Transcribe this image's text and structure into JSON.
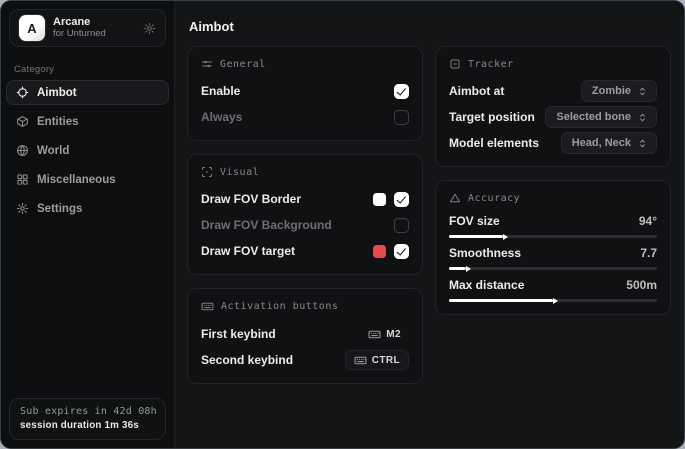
{
  "sidebar": {
    "brand": {
      "logo_letter": "A",
      "name": "Arcane",
      "subtitle": "for Unturned"
    },
    "category_label": "Category",
    "items": [
      {
        "label": "Aimbot",
        "active": true
      },
      {
        "label": "Entities",
        "active": false
      },
      {
        "label": "World",
        "active": false
      },
      {
        "label": "Miscellaneous",
        "active": false
      },
      {
        "label": "Settings",
        "active": false
      }
    ],
    "status": {
      "expiry": "Sub expires in 42d 08h",
      "session": "session duration 1m 36s"
    }
  },
  "main": {
    "title": "Aimbot",
    "general": {
      "title": "General",
      "rows": [
        {
          "label": "Enable",
          "checked": true
        },
        {
          "label": "Always",
          "checked": false
        }
      ]
    },
    "visual": {
      "title": "Visual",
      "rows": [
        {
          "label": "Draw FOV Border",
          "swatch": "#ffffff",
          "checked": true
        },
        {
          "label": "Draw FOV Background",
          "checked": false
        },
        {
          "label": "Draw FOV target",
          "swatch": "#e5484d",
          "checked": true
        }
      ]
    },
    "activation": {
      "title": "Activation buttons",
      "rows": [
        {
          "label": "First keybind",
          "key": "M2"
        },
        {
          "label": "Second keybind",
          "key": "CTRL"
        }
      ]
    },
    "tracker": {
      "title": "Tracker",
      "rows": [
        {
          "label": "Aimbot at",
          "value": "Zombie"
        },
        {
          "label": "Target position",
          "value": "Selected bone"
        },
        {
          "label": "Model elements",
          "value": "Head, Neck"
        }
      ]
    },
    "accuracy": {
      "title": "Accuracy",
      "rows": [
        {
          "label": "FOV size",
          "value": "94°",
          "fill_pct": 26
        },
        {
          "label": "Smoothness",
          "value": "7.7",
          "fill_pct": 8
        },
        {
          "label": "Max distance",
          "value": "500m",
          "fill_pct": 50
        }
      ]
    }
  },
  "colors": {
    "accent_red": "#e5484d",
    "swatch_white": "#ffffff"
  }
}
